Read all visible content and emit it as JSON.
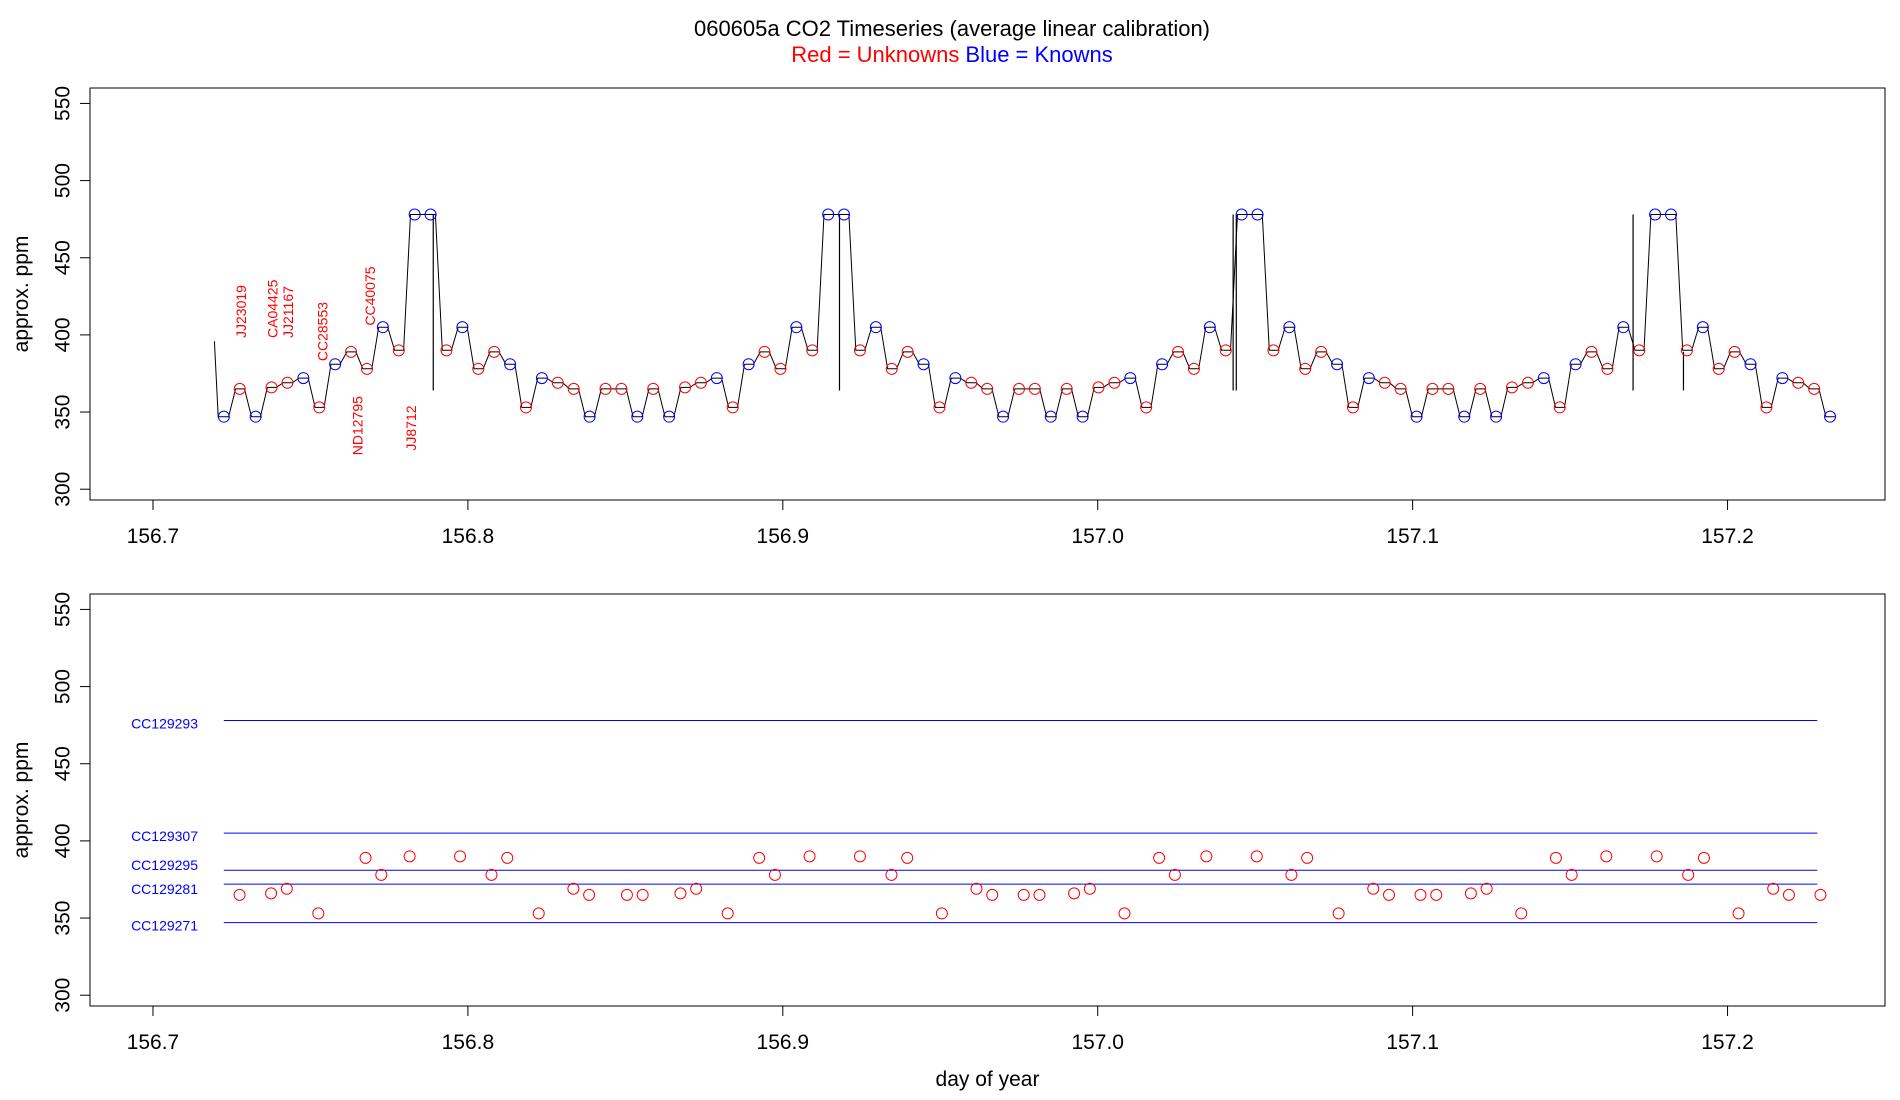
{
  "chart_data": [
    {
      "type": "line",
      "panel": "top",
      "title": "060605a   CO2 Timeseries (average linear calibration)",
      "subtitle": {
        "red": "Red = Unknowns",
        "blue": "Blue = Knowns"
      },
      "xlabel": "",
      "ylabel": "approx. ppm",
      "xlim": [
        156.68,
        157.25
      ],
      "ylim": [
        293,
        560
      ],
      "xticks": [
        156.7,
        156.8,
        156.9,
        157.0,
        157.1,
        157.2
      ],
      "xtick_labels": [
        "156.7",
        "156.8",
        "156.9",
        "157.0",
        "157.1",
        "157.2"
      ],
      "yticks": [
        300,
        350,
        400,
        450,
        500,
        550
      ],
      "ytick_labels": [
        "300",
        "350",
        "400",
        "450",
        "500",
        "550"
      ],
      "colors": {
        "unknown": "#ff0000",
        "known": "#0000ff",
        "trace": "#000000"
      },
      "trace_start": [
        156.7195,
        396
      ],
      "spikes": [
        {
          "x": 156.789,
          "y_top": 478,
          "y_bottom": 364
        },
        {
          "x": 156.918,
          "y_top": 478,
          "y_bottom": 364
        },
        {
          "x": 157.043,
          "y_top": 478,
          "y_bottom": 364
        },
        {
          "x": 157.044,
          "y_top": 478,
          "y_bottom": 364
        },
        {
          "x": 157.17,
          "y_top": 478,
          "y_bottom": 364
        },
        {
          "x": 157.186,
          "y_top": 389,
          "y_bottom": 364
        }
      ],
      "cycle": [
        {
          "y": 347,
          "k": 1
        },
        {
          "y": 365,
          "k": 0
        },
        {
          "y": 347,
          "k": 1
        },
        {
          "y": 366,
          "k": 0
        },
        {
          "y": 369,
          "k": 0
        },
        {
          "y": 372,
          "k": 1
        },
        {
          "y": 353,
          "k": 0
        },
        {
          "y": 381,
          "k": 1
        },
        {
          "y": 389,
          "k": 0
        },
        {
          "y": 378,
          "k": 0
        },
        {
          "y": 405,
          "k": 1
        },
        {
          "y": 390,
          "k": 0
        },
        {
          "y": 478,
          "k": 1
        },
        {
          "y": 478,
          "k": 1
        },
        {
          "y": 390,
          "k": 0
        },
        {
          "y": 405,
          "k": 1
        },
        {
          "y": 378,
          "k": 0
        },
        {
          "y": 389,
          "k": 0
        },
        {
          "y": 381,
          "k": 1
        },
        {
          "y": 353,
          "k": 0
        },
        {
          "y": 372,
          "k": 1
        },
        {
          "y": 369,
          "k": 0
        },
        {
          "y": 365,
          "k": 0
        },
        {
          "y": 347,
          "k": 1
        },
        {
          "y": 365,
          "k": 0
        },
        {
          "y": 365,
          "k": 0
        }
      ],
      "first_x": 156.7225,
      "step": 0.00505,
      "n_points": 102,
      "annotations": [
        {
          "text": "JJ23019",
          "x": 156.7295,
          "y": 398
        },
        {
          "text": "CA04425",
          "x": 156.7395,
          "y": 398
        },
        {
          "text": "JJ21167",
          "x": 156.7445,
          "y": 398
        },
        {
          "text": "CC28553",
          "x": 156.7555,
          "y": 383
        },
        {
          "text": "ND12795",
          "x": 156.7665,
          "y": 322
        },
        {
          "text": "CC40075",
          "x": 156.7705,
          "y": 406
        },
        {
          "text": "JJ8712",
          "x": 156.7835,
          "y": 325
        }
      ]
    },
    {
      "type": "scatter",
      "panel": "bottom",
      "xlabel": "day of year",
      "ylabel": "approx. ppm",
      "xlim": [
        156.68,
        157.25
      ],
      "ylim": [
        293,
        560
      ],
      "xticks": [
        156.7,
        156.8,
        156.9,
        157.0,
        157.1,
        157.2
      ],
      "xtick_labels": [
        "156.7",
        "156.8",
        "156.9",
        "157.0",
        "157.1",
        "157.2"
      ],
      "yticks": [
        300,
        350,
        400,
        450,
        500,
        550
      ],
      "ytick_labels": [
        "300",
        "350",
        "400",
        "450",
        "500",
        "550"
      ],
      "reference_lines": [
        {
          "name": "CC129293",
          "y": 478
        },
        {
          "name": "CC129307",
          "y": 405
        },
        {
          "name": "CC129295",
          "y": 381
        },
        {
          "name": "CC129281",
          "y": 372
        },
        {
          "name": "CC129271",
          "y": 347
        }
      ],
      "reference_x_range": [
        156.7225,
        157.2285
      ],
      "unknowns": [
        [
          156.7275,
          365
        ],
        [
          156.7375,
          366
        ],
        [
          156.7425,
          369
        ],
        [
          156.7525,
          353
        ],
        [
          156.7675,
          389
        ],
        [
          156.7725,
          378
        ],
        [
          156.7815,
          390
        ],
        [
          156.7975,
          390
        ],
        [
          156.8075,
          378
        ],
        [
          156.8125,
          389
        ],
        [
          156.8225,
          353
        ],
        [
          156.8335,
          369
        ],
        [
          156.8385,
          365
        ],
        [
          156.8505,
          365
        ],
        [
          156.8555,
          365
        ],
        [
          156.8675,
          366
        ],
        [
          156.8725,
          369
        ],
        [
          156.8825,
          353
        ],
        [
          156.8925,
          389
        ],
        [
          156.8975,
          378
        ],
        [
          156.9085,
          390
        ],
        [
          156.9245,
          390
        ],
        [
          156.9345,
          378
        ],
        [
          156.9395,
          389
        ],
        [
          156.9505,
          353
        ],
        [
          156.9615,
          369
        ],
        [
          156.9665,
          365
        ],
        [
          156.9765,
          365
        ],
        [
          156.9815,
          365
        ],
        [
          156.9925,
          366
        ],
        [
          156.9975,
          369
        ],
        [
          157.0085,
          353
        ],
        [
          157.0195,
          389
        ],
        [
          157.0245,
          378
        ],
        [
          157.0345,
          390
        ],
        [
          157.0505,
          390
        ],
        [
          157.0615,
          378
        ],
        [
          157.0665,
          389
        ],
        [
          157.0765,
          353
        ],
        [
          157.0875,
          369
        ],
        [
          157.0925,
          365
        ],
        [
          157.1025,
          365
        ],
        [
          157.1075,
          365
        ],
        [
          157.1185,
          366
        ],
        [
          157.1235,
          369
        ],
        [
          157.1345,
          353
        ],
        [
          157.1455,
          389
        ],
        [
          157.1505,
          378
        ],
        [
          157.1615,
          390
        ],
        [
          157.1775,
          390
        ],
        [
          157.1875,
          378
        ],
        [
          157.1925,
          389
        ],
        [
          157.2035,
          353
        ],
        [
          157.2145,
          369
        ],
        [
          157.2195,
          365
        ],
        [
          157.2295,
          365
        ]
      ],
      "colors": {
        "unknown": "#ff0000",
        "known": "#0000ff"
      }
    }
  ]
}
